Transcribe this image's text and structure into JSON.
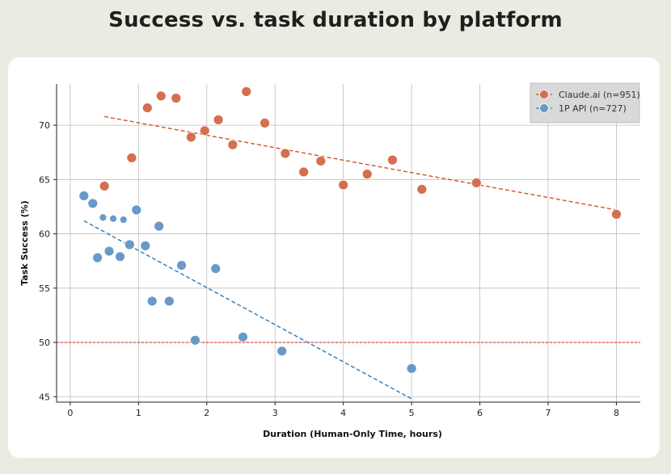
{
  "chart_data": {
    "type": "scatter",
    "title": "Success vs. task duration by platform",
    "xlabel": "Duration (Human-Only Time, hours)",
    "ylabel": "Task Success (%)",
    "xlim": [
      -0.2,
      8.35
    ],
    "ylim": [
      44.5,
      73.8
    ],
    "xticks": [
      0,
      1,
      2,
      3,
      4,
      5,
      6,
      7,
      8
    ],
    "yticks": [
      45,
      50,
      55,
      60,
      65,
      70
    ],
    "grid": true,
    "reference_line": {
      "y": 50,
      "color": "#e0312e"
    },
    "legend_position": "top-right",
    "series": [
      {
        "name": "Claude.ai (n=951)",
        "color": "#d46f4f",
        "trend_color": "#d4531f",
        "trend": {
          "x": [
            0.5,
            8.0
          ],
          "y": [
            70.8,
            62.2
          ]
        },
        "points": [
          {
            "x": 0.5,
            "y": 64.4
          },
          {
            "x": 0.9,
            "y": 67.0
          },
          {
            "x": 1.13,
            "y": 71.6
          },
          {
            "x": 1.33,
            "y": 72.7
          },
          {
            "x": 1.55,
            "y": 72.5
          },
          {
            "x": 1.77,
            "y": 68.9
          },
          {
            "x": 1.97,
            "y": 69.5
          },
          {
            "x": 2.17,
            "y": 70.5
          },
          {
            "x": 2.38,
            "y": 68.2
          },
          {
            "x": 2.58,
            "y": 73.1
          },
          {
            "x": 2.85,
            "y": 70.2
          },
          {
            "x": 3.15,
            "y": 67.4
          },
          {
            "x": 3.42,
            "y": 65.7
          },
          {
            "x": 3.67,
            "y": 66.7
          },
          {
            "x": 4.0,
            "y": 64.5
          },
          {
            "x": 4.35,
            "y": 65.5
          },
          {
            "x": 4.72,
            "y": 66.8
          },
          {
            "x": 5.15,
            "y": 64.1
          },
          {
            "x": 5.95,
            "y": 64.7
          },
          {
            "x": 8.0,
            "y": 61.8
          }
        ]
      },
      {
        "name": "1P API (n=727)",
        "color": "#6a99c9",
        "trend_color": "#2a7bb8",
        "trend": {
          "x": [
            0.2,
            5.0
          ],
          "y": [
            61.2,
            44.8
          ]
        },
        "points": [
          {
            "x": 0.2,
            "y": 63.5,
            "r": 6
          },
          {
            "x": 0.33,
            "y": 62.8,
            "r": 6
          },
          {
            "x": 0.48,
            "y": 61.5,
            "r": 4.5
          },
          {
            "x": 0.63,
            "y": 61.4,
            "r": 4.5
          },
          {
            "x": 0.78,
            "y": 61.3,
            "r": 4.5
          },
          {
            "x": 0.97,
            "y": 62.2,
            "r": 6
          },
          {
            "x": 0.4,
            "y": 57.8,
            "r": 6
          },
          {
            "x": 0.57,
            "y": 58.4,
            "r": 6
          },
          {
            "x": 0.73,
            "y": 57.9,
            "r": 6
          },
          {
            "x": 0.87,
            "y": 59.0,
            "r": 6
          },
          {
            "x": 1.1,
            "y": 58.9,
            "r": 6
          },
          {
            "x": 1.3,
            "y": 60.7,
            "r": 6
          },
          {
            "x": 1.2,
            "y": 53.8,
            "r": 6
          },
          {
            "x": 1.45,
            "y": 53.8,
            "r": 6
          },
          {
            "x": 1.63,
            "y": 57.1,
            "r": 6
          },
          {
            "x": 1.83,
            "y": 50.2,
            "r": 6
          },
          {
            "x": 2.13,
            "y": 56.8,
            "r": 6
          },
          {
            "x": 2.53,
            "y": 50.5,
            "r": 6
          },
          {
            "x": 3.1,
            "y": 49.2,
            "r": 6
          },
          {
            "x": 5.0,
            "y": 47.6,
            "r": 6
          }
        ]
      }
    ]
  }
}
